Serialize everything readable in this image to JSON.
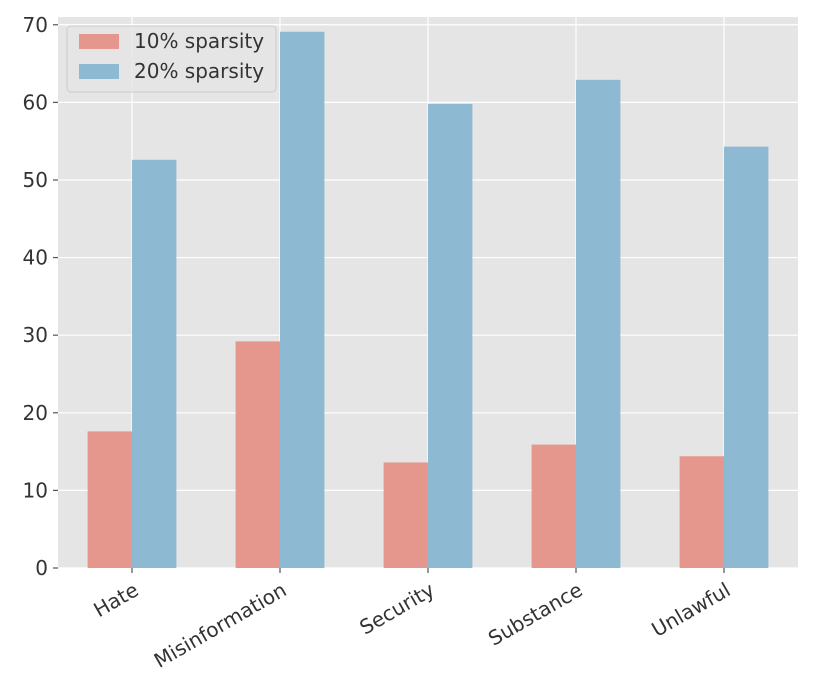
{
  "chart_data": {
    "type": "bar",
    "title": "",
    "xlabel": "",
    "ylabel": "",
    "categories": [
      "Hate",
      "Misinformation",
      "Security",
      "Substance",
      "Unlawful"
    ],
    "series": [
      {
        "name": "10% sparsity",
        "color": "#e5978d",
        "values": [
          17.6,
          29.2,
          13.6,
          15.9,
          14.4
        ]
      },
      {
        "name": "20% sparsity",
        "color": "#8db9d3",
        "values": [
          52.6,
          69.1,
          59.8,
          62.9,
          54.3
        ]
      }
    ],
    "ylim": [
      0,
      71
    ],
    "yticks": [
      0,
      10,
      20,
      30,
      40,
      50,
      60,
      70
    ],
    "grid": true,
    "legend_position": "top-left",
    "background": "#e5e5e5",
    "style": "ggplot"
  }
}
